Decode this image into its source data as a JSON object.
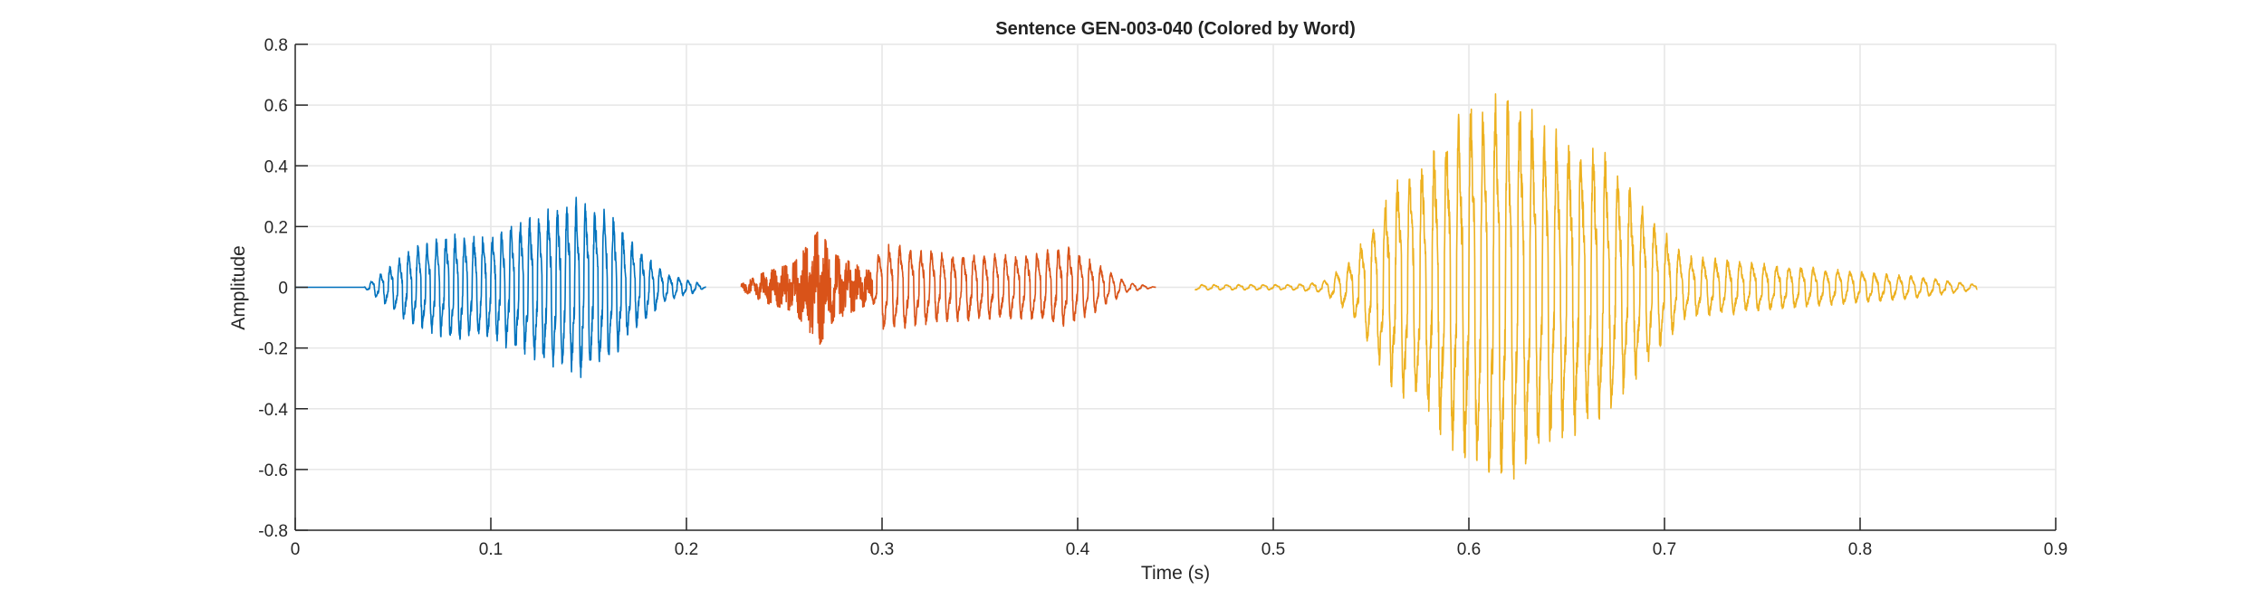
{
  "chart_data": {
    "type": "line",
    "title": "Sentence GEN-003-040 (Colored by Word)",
    "xlabel": "Time (s)",
    "ylabel": "Amplitude",
    "xlim": [
      0,
      0.9
    ],
    "ylim": [
      -0.8,
      0.8
    ],
    "xticks": [
      0,
      0.1,
      0.2,
      0.3,
      0.4,
      0.5,
      0.6,
      0.7,
      0.8,
      0.9
    ],
    "xtick_labels": [
      "0",
      "0.1",
      "0.2",
      "0.3",
      "0.4",
      "0.5",
      "0.6",
      "0.7",
      "0.8",
      "0.9"
    ],
    "yticks": [
      -0.8,
      -0.6,
      -0.4,
      -0.2,
      0,
      0.2,
      0.4,
      0.6,
      0.8
    ],
    "ytick_labels": [
      "-0.8",
      "-0.6",
      "-0.4",
      "-0.2",
      "0",
      "0.2",
      "0.4",
      "0.6",
      "0.8"
    ],
    "grid": true,
    "series": [
      {
        "color": "#0072BD",
        "t_start": 0.0,
        "t_end": 0.21,
        "onset": 0.035,
        "freq_hz": 210,
        "envelope": [
          [
            0.0,
            0.0
          ],
          [
            0.035,
            0.0
          ],
          [
            0.045,
            0.06
          ],
          [
            0.06,
            0.15
          ],
          [
            0.08,
            0.2
          ],
          [
            0.1,
            0.2
          ],
          [
            0.12,
            0.27
          ],
          [
            0.145,
            0.34
          ],
          [
            0.16,
            0.29
          ],
          [
            0.175,
            0.15
          ],
          [
            0.19,
            0.05
          ],
          [
            0.205,
            0.02
          ],
          [
            0.21,
            0.0
          ]
        ]
      },
      {
        "color": "#D95319",
        "t_start": 0.228,
        "t_end": 0.44,
        "noise_region": [
          0.228,
          0.295
        ],
        "freq_hz": 185,
        "envelope": [
          [
            0.228,
            0.01
          ],
          [
            0.24,
            0.05
          ],
          [
            0.255,
            0.08
          ],
          [
            0.268,
            0.19
          ],
          [
            0.275,
            0.11
          ],
          [
            0.295,
            0.05
          ],
          [
            0.3,
            0.17
          ],
          [
            0.33,
            0.13
          ],
          [
            0.37,
            0.12
          ],
          [
            0.395,
            0.15
          ],
          [
            0.41,
            0.09
          ],
          [
            0.425,
            0.02
          ],
          [
            0.44,
            0.0
          ]
        ]
      },
      {
        "color": "#EDB120",
        "t_start": 0.46,
        "t_end": 0.86,
        "freq_hz": 160,
        "envelope": [
          [
            0.46,
            0.01
          ],
          [
            0.51,
            0.01
          ],
          [
            0.525,
            0.02
          ],
          [
            0.54,
            0.1
          ],
          [
            0.56,
            0.38
          ],
          [
            0.58,
            0.5
          ],
          [
            0.6,
            0.68
          ],
          [
            0.62,
            0.75
          ],
          [
            0.64,
            0.6
          ],
          [
            0.67,
            0.5
          ],
          [
            0.69,
            0.3
          ],
          [
            0.71,
            0.12
          ],
          [
            0.75,
            0.09
          ],
          [
            0.8,
            0.06
          ],
          [
            0.83,
            0.04
          ],
          [
            0.86,
            0.01
          ]
        ]
      }
    ]
  }
}
